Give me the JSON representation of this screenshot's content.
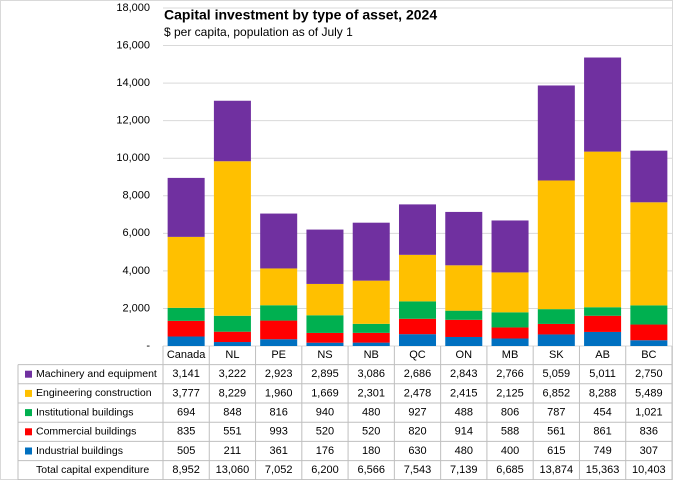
{
  "chart_data": {
    "type": "stacked_bar",
    "title": "Capital investment by type of asset, 2024",
    "subtitle": "$ per capita, population as of July 1",
    "categories": [
      "Canada",
      "NL",
      "PE",
      "NS",
      "NB",
      "QC",
      "ON",
      "MB",
      "SK",
      "AB",
      "BC"
    ],
    "series": [
      {
        "name": "Machinery and equipment",
        "color": "#7030a0",
        "values": [
          3141,
          3222,
          2923,
          2895,
          3086,
          2686,
          2843,
          2766,
          5059,
          5011,
          2750
        ],
        "value_labels": [
          "3,141",
          "3,222",
          "2,923",
          "2,895",
          "3,086",
          "2,686",
          "2,843",
          "2,766",
          "5,059",
          "5,011",
          "2,750"
        ]
      },
      {
        "name": "Engineering construction",
        "color": "#ffc000",
        "values": [
          3777,
          8229,
          1960,
          1669,
          2301,
          2478,
          2415,
          2125,
          6852,
          8288,
          5489
        ],
        "value_labels": [
          "3,777",
          "8,229",
          "1,960",
          "1,669",
          "2,301",
          "2,478",
          "2,415",
          "2,125",
          "6,852",
          "8,288",
          "5,489"
        ]
      },
      {
        "name": "Institutional buildings",
        "color": "#00b050",
        "values": [
          694,
          848,
          816,
          940,
          480,
          927,
          488,
          806,
          787,
          454,
          1021
        ],
        "value_labels": [
          "694",
          "848",
          "816",
          "940",
          "480",
          "927",
          "488",
          "806",
          "787",
          "454",
          "1,021"
        ]
      },
      {
        "name": "Commercial buildings",
        "color": "#ff0000",
        "values": [
          835,
          551,
          993,
          520,
          520,
          820,
          914,
          588,
          561,
          861,
          836
        ],
        "value_labels": [
          "835",
          "551",
          "993",
          "520",
          "520",
          "820",
          "914",
          "588",
          "561",
          "861",
          "836"
        ]
      },
      {
        "name": "Industrial buildings",
        "color": "#0070c0",
        "values": [
          505,
          211,
          361,
          176,
          180,
          630,
          480,
          400,
          615,
          749,
          307
        ],
        "value_labels": [
          "505",
          "211",
          "361",
          "176",
          "180",
          "630",
          "480",
          "400",
          "615",
          "749",
          "307"
        ]
      }
    ],
    "totals": {
      "name": "Total capital expenditure",
      "values": [
        8952,
        13060,
        7052,
        6200,
        6566,
        7543,
        7139,
        6685,
        13874,
        15363,
        10403
      ],
      "value_labels": [
        "8,952",
        "13,060",
        "7,052",
        "6,200",
        "6,566",
        "7,543",
        "7,139",
        "6,685",
        "13,874",
        "15,363",
        "10,403"
      ]
    },
    "ylim": [
      0,
      18000
    ],
    "yticks": [
      {
        "value": 0,
        "label": "-"
      },
      {
        "value": 2000,
        "label": "2,000"
      },
      {
        "value": 4000,
        "label": "4,000"
      },
      {
        "value": 6000,
        "label": "6,000"
      },
      {
        "value": 8000,
        "label": "8,000"
      },
      {
        "value": 10000,
        "label": "10,000"
      },
      {
        "value": 12000,
        "label": "12,000"
      },
      {
        "value": 14000,
        "label": "14,000"
      },
      {
        "value": 16000,
        "label": "16,000"
      },
      {
        "value": 18000,
        "label": "18,000"
      }
    ],
    "grid": true
  }
}
